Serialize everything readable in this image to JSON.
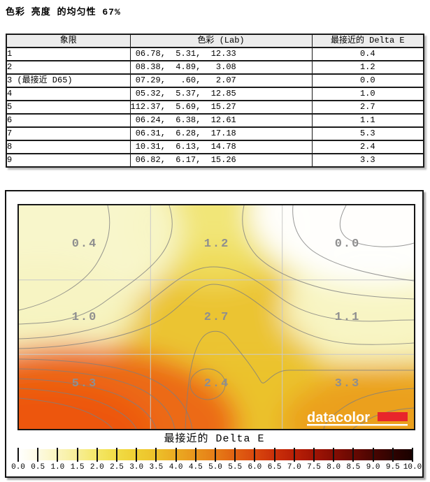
{
  "page": {
    "title": "色彩 亮度 的均匀性 67%"
  },
  "table": {
    "headers": [
      "象限",
      "色彩 (Lab)",
      "最接近的 Delta E"
    ],
    "rows": [
      {
        "quadrant": "1",
        "lab": " 06.78,  5.31,  12.33",
        "delta_e": "0.4"
      },
      {
        "quadrant": "2",
        "lab": " 08.38,  4.89,   3.08",
        "delta_e": "1.2"
      },
      {
        "quadrant": "3 (最接近 D65)",
        "lab": " 07.29,   .60,   2.07",
        "delta_e": "0.0"
      },
      {
        "quadrant": "4",
        "lab": " 05.32,  5.37,  12.85",
        "delta_e": "1.0"
      },
      {
        "quadrant": "5",
        "lab": "112.37,  5.69,  15.27",
        "delta_e": "2.7"
      },
      {
        "quadrant": "6",
        "lab": " 06.24,  6.38,  12.61",
        "delta_e": "1.1"
      },
      {
        "quadrant": "7",
        "lab": " 06.31,  6.28,  17.18",
        "delta_e": "5.3"
      },
      {
        "quadrant": "8",
        "lab": " 10.31,  6.13,  14.78",
        "delta_e": "2.4"
      },
      {
        "quadrant": "9",
        "lab": " 06.82,  6.17,  15.26",
        "delta_e": "3.3"
      }
    ]
  },
  "heatmap": {
    "labels": [
      "0.4",
      "1.2",
      "0.0",
      "1.0",
      "2.7",
      "1.1",
      "5.3",
      "2.4",
      "3.3"
    ],
    "label_color": "#8f8f8f",
    "logo_text": "datacolor",
    "logo_accent_color": "#e8252b",
    "colorbar_title": "最接近的 Delta E",
    "colorbar_ticks": [
      "0.0",
      "0.5",
      "1.0",
      "1.5",
      "2.0",
      "2.5",
      "3.0",
      "3.5",
      "4.0",
      "4.5",
      "5.0",
      "5.5",
      "6.0",
      "6.5",
      "7.0",
      "7.5",
      "8.0",
      "8.5",
      "9.0",
      "9.5",
      "10.0"
    ],
    "colorbar_colors": [
      "#ffffff",
      "#fdfae2",
      "#faf4bc",
      "#f7ee96",
      "#f4e767",
      "#f1dc45",
      "#efcf33",
      "#edc02a",
      "#ebab22",
      "#e9941c",
      "#e67d17",
      "#e16112",
      "#d9480e",
      "#cb300a",
      "#b91f06",
      "#a11404",
      "#860d03",
      "#690902",
      "#4a0501",
      "#2f0301",
      "#190100"
    ]
  },
  "chart_data": [
    {
      "type": "table",
      "title": "色彩 亮度 的均匀性 67%",
      "columns": [
        "象限",
        "色彩 (Lab)",
        "最接近的 Delta E"
      ],
      "rows": [
        [
          "1",
          "06.78, 5.31, 12.33",
          0.4
        ],
        [
          "2",
          "08.38, 4.89, 3.08",
          1.2
        ],
        [
          "3 (最接近 D65)",
          "07.29, .60, 2.07",
          0.0
        ],
        [
          "4",
          "05.32, 5.37, 12.85",
          1.0
        ],
        [
          "5",
          "112.37, 5.69, 15.27",
          2.7
        ],
        [
          "6",
          "06.24, 6.38, 12.61",
          1.1
        ],
        [
          "7",
          "06.31, 6.28, 17.18",
          5.3
        ],
        [
          "8",
          "10.31, 6.13, 14.78",
          2.4
        ],
        [
          "9",
          "06.82, 6.17, 15.26",
          3.3
        ]
      ]
    },
    {
      "type": "heatmap",
      "title": "最接近的 Delta E",
      "rows": 3,
      "cols": 3,
      "grid_values": [
        [
          0.4,
          1.2,
          0.0
        ],
        [
          1.0,
          2.7,
          1.1
        ],
        [
          5.3,
          2.4,
          3.3
        ]
      ],
      "colorbar_range": [
        0.0,
        10.0
      ],
      "colorbar_step": 0.5,
      "legend_position": "bottom",
      "grid": true
    }
  ]
}
